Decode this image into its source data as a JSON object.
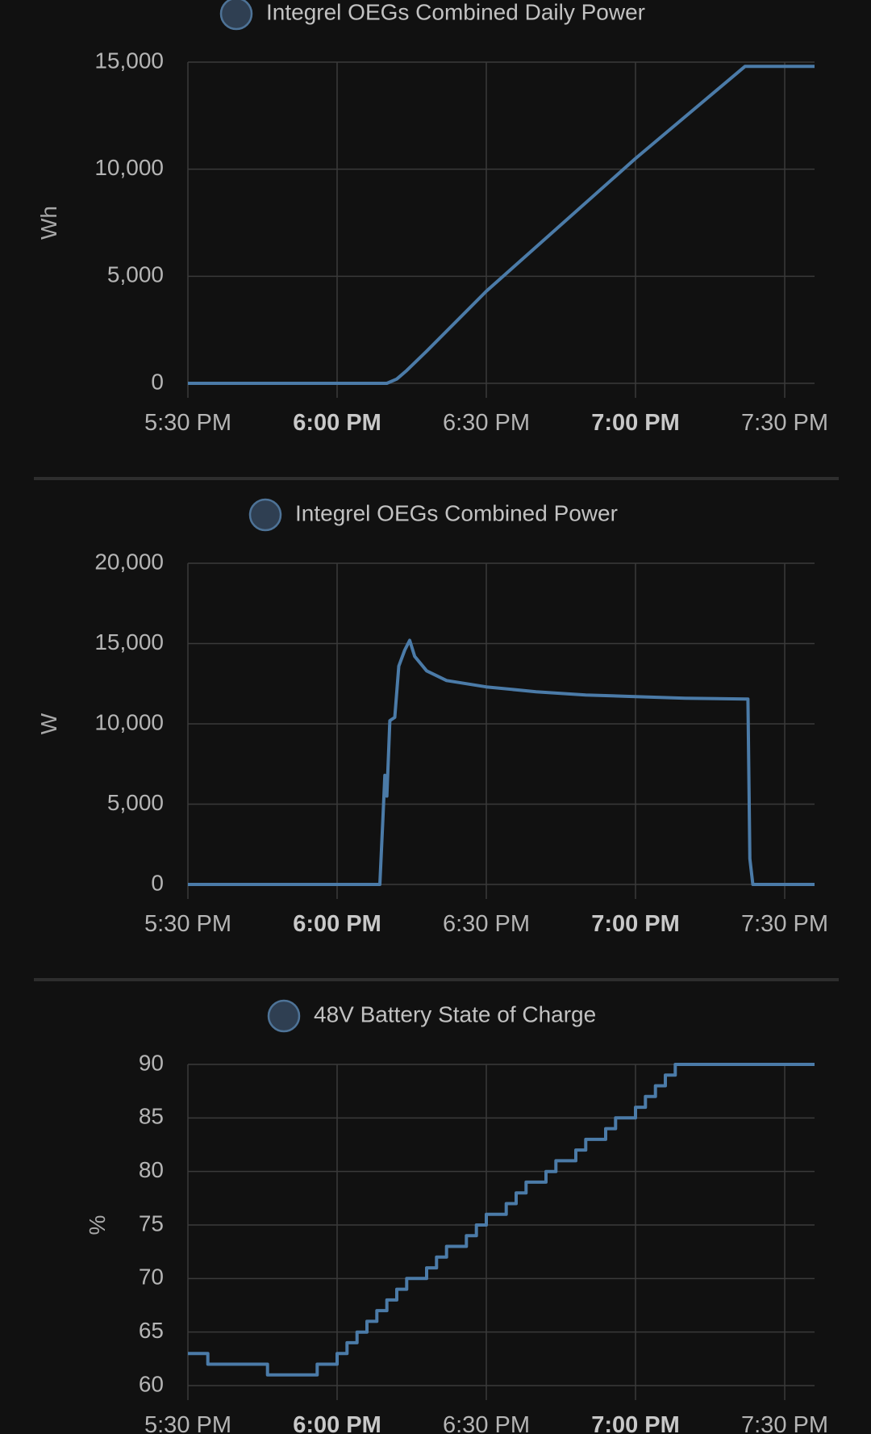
{
  "chart_data": [
    {
      "type": "line",
      "legend": "Integrel OEGs Combined Daily Power",
      "ylabel": "Wh",
      "ylim": [
        0,
        15000
      ],
      "yticks": [
        "0",
        "5,000",
        "10,000",
        "15,000"
      ],
      "yticks_values": [
        0,
        5000,
        10000,
        15000
      ],
      "xticks": [
        "5:30 PM",
        "6:00 PM",
        "6:30 PM",
        "7:00 PM",
        "7:30 PM"
      ],
      "xticks_bold": [
        false,
        true,
        false,
        true,
        false
      ],
      "x_minutes_after_530pm_range": [
        0,
        63
      ],
      "points": [
        [
          0,
          0
        ],
        [
          20,
          0
        ],
        [
          21,
          200
        ],
        [
          22,
          600
        ],
        [
          24,
          1500
        ],
        [
          30,
          4300
        ],
        [
          45,
          10500
        ],
        [
          56,
          14800
        ],
        [
          63,
          14800
        ]
      ]
    },
    {
      "type": "line",
      "legend": "Integrel OEGs Combined Power",
      "ylabel": "W",
      "ylim": [
        0,
        20000
      ],
      "yticks": [
        "0",
        "5,000",
        "10,000",
        "15,000",
        "20,000"
      ],
      "yticks_values": [
        0,
        5000,
        10000,
        15000,
        20000
      ],
      "xticks": [
        "5:30 PM",
        "6:00 PM",
        "6:30 PM",
        "7:00 PM",
        "7:30 PM"
      ],
      "xticks_bold": [
        false,
        true,
        false,
        true,
        false
      ],
      "x_minutes_after_530pm_range": [
        0,
        63
      ],
      "points": [
        [
          0,
          0
        ],
        [
          19.3,
          0
        ],
        [
          19.6,
          4000
        ],
        [
          19.8,
          6800
        ],
        [
          20,
          5500
        ],
        [
          20.3,
          10200
        ],
        [
          20.8,
          10400
        ],
        [
          21.2,
          13600
        ],
        [
          21.8,
          14600
        ],
        [
          22.3,
          15200
        ],
        [
          22.8,
          14200
        ],
        [
          24,
          13300
        ],
        [
          26,
          12700
        ],
        [
          30,
          12300
        ],
        [
          35,
          12000
        ],
        [
          40,
          11800
        ],
        [
          45,
          11700
        ],
        [
          50,
          11600
        ],
        [
          56.3,
          11550
        ],
        [
          56.5,
          1600
        ],
        [
          56.8,
          0
        ],
        [
          63,
          0
        ]
      ]
    },
    {
      "type": "line",
      "legend": "48V Battery State of Charge",
      "ylabel": "%",
      "ylim": [
        60,
        90
      ],
      "yticks": [
        "60",
        "65",
        "70",
        "75",
        "80",
        "85",
        "90"
      ],
      "yticks_values": [
        60,
        65,
        70,
        75,
        80,
        85,
        90
      ],
      "xticks": [
        "5:30 PM",
        "6:00 PM",
        "6:30 PM",
        "7:00 PM",
        "7:30 PM"
      ],
      "xticks_bold": [
        false,
        true,
        false,
        true,
        false
      ],
      "x_minutes_after_530pm_range": [
        0,
        63
      ],
      "steps": [
        [
          0,
          63
        ],
        [
          2,
          62
        ],
        [
          8,
          61
        ],
        [
          13,
          62
        ],
        [
          15,
          63
        ],
        [
          16,
          64
        ],
        [
          17,
          65
        ],
        [
          18,
          66
        ],
        [
          19,
          67
        ],
        [
          20,
          68
        ],
        [
          21,
          69
        ],
        [
          22,
          70
        ],
        [
          24,
          71
        ],
        [
          25,
          72
        ],
        [
          26,
          73
        ],
        [
          28,
          74
        ],
        [
          29,
          75
        ],
        [
          30,
          76
        ],
        [
          32,
          77
        ],
        [
          33,
          78
        ],
        [
          34,
          79
        ],
        [
          36,
          80
        ],
        [
          37,
          81
        ],
        [
          39,
          82
        ],
        [
          40,
          83
        ],
        [
          42,
          84
        ],
        [
          43,
          85
        ],
        [
          45,
          86
        ],
        [
          46,
          87
        ],
        [
          47,
          88
        ],
        [
          48,
          89
        ],
        [
          49,
          90
        ],
        [
          63,
          90
        ]
      ]
    }
  ]
}
